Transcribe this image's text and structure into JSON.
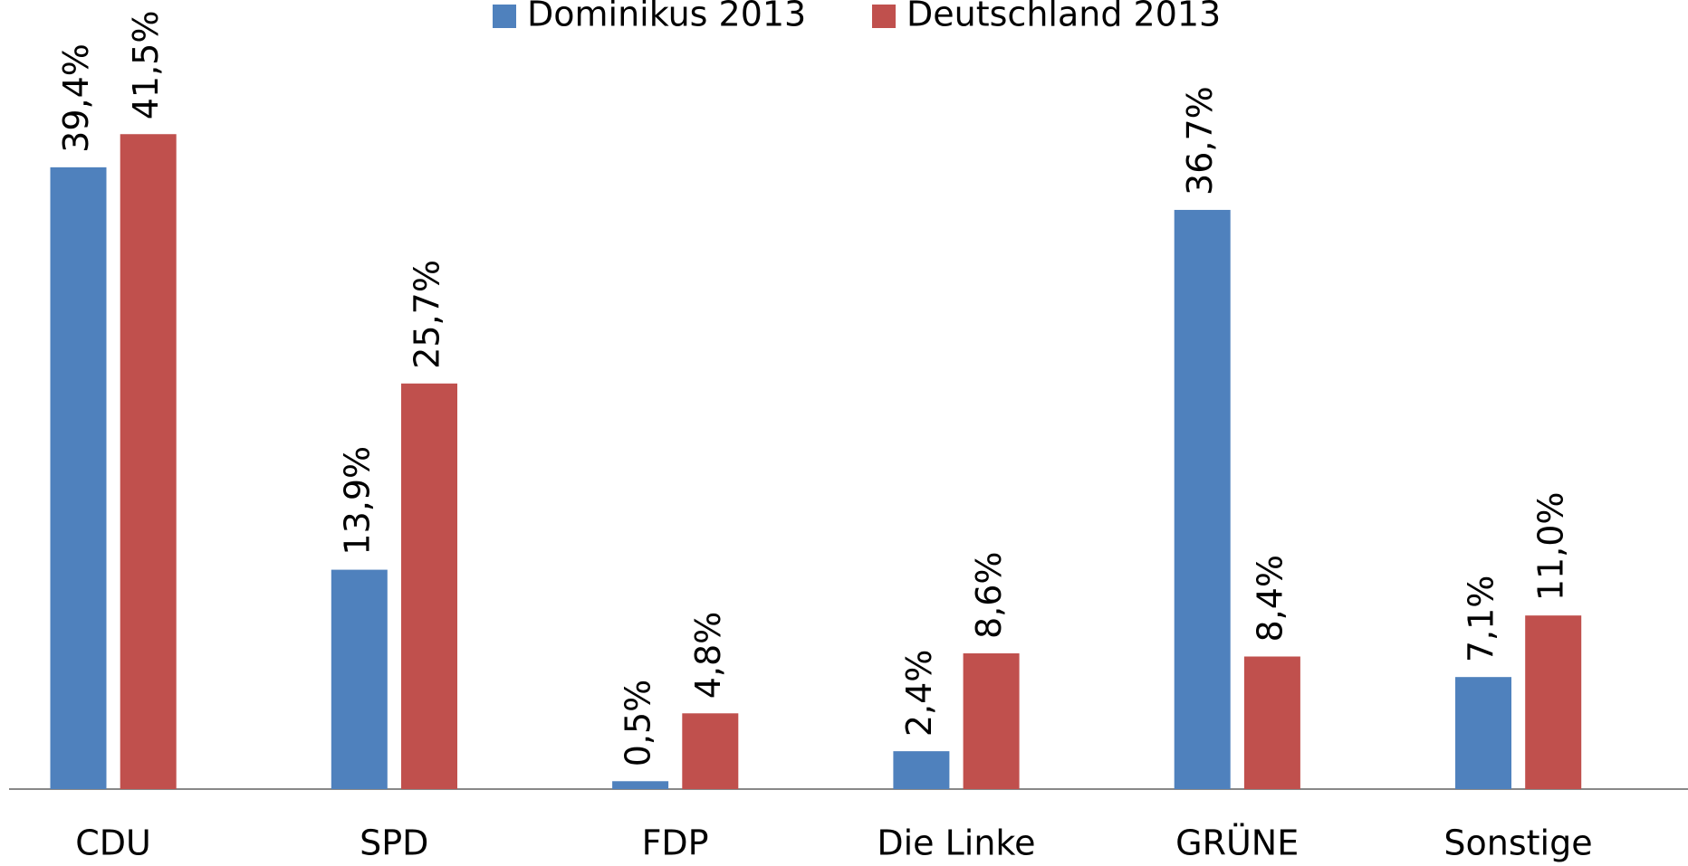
{
  "chart_data": {
    "type": "bar",
    "categories": [
      "CDU",
      "SPD",
      "FDP",
      "Die Linke",
      "GRÜNE",
      "Sonstige"
    ],
    "series": [
      {
        "name": "Dominikus 2013",
        "color": "#4f81bd",
        "values": [
          39.4,
          13.9,
          0.5,
          2.4,
          36.7,
          7.1
        ],
        "value_labels": [
          "39,4%",
          "13,9%",
          "0,5%",
          "2,4%",
          "36,7%",
          "7,1%"
        ]
      },
      {
        "name": "Deutschland 2013",
        "color": "#c0504d",
        "values": [
          41.5,
          25.7,
          4.8,
          8.6,
          8.4,
          11.0
        ],
        "value_labels": [
          "41,5%",
          "25,7%",
          "4,8%",
          "8,6%",
          "8,4%",
          "11,0%"
        ]
      }
    ],
    "ylim": [
      0,
      50
    ],
    "legend": "top"
  }
}
